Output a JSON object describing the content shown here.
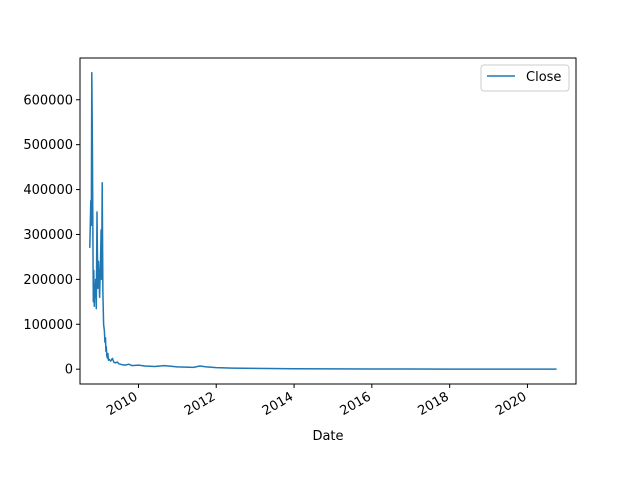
{
  "chart_data": {
    "type": "line",
    "xlabel": "Date",
    "ylabel": "",
    "x_ticks": [
      "2010",
      "2012",
      "2014",
      "2016",
      "2018",
      "2020"
    ],
    "y_ticks": [
      "0",
      "100000",
      "200000",
      "300000",
      "400000",
      "500000",
      "600000"
    ],
    "xlim": [
      "2008-07-01",
      "2021-04-01"
    ],
    "ylim": [
      -33000,
      693000
    ],
    "grid": false,
    "legend_position": "top-right",
    "series": [
      {
        "name": "Close",
        "color": "#1f77b4",
        "x": [
          "2008-10-01",
          "2008-10-10",
          "2008-10-15",
          "2008-10-20",
          "2008-10-25",
          "2008-10-30",
          "2008-11-03",
          "2008-11-08",
          "2008-11-12",
          "2008-11-16",
          "2008-11-20",
          "2008-11-25",
          "2008-12-01",
          "2008-12-08",
          "2008-12-15",
          "2008-12-22",
          "2009-01-01",
          "2009-01-10",
          "2009-01-15",
          "2009-01-20",
          "2009-01-25",
          "2009-02-01",
          "2009-02-08",
          "2009-02-15",
          "2009-02-20",
          "2009-02-25",
          "2009-03-01",
          "2009-03-05",
          "2009-03-10",
          "2009-03-15",
          "2009-03-20",
          "2009-03-25",
          "2009-04-01",
          "2009-04-15",
          "2009-05-01",
          "2009-05-15",
          "2009-06-01",
          "2009-06-15",
          "2009-07-01",
          "2009-08-01",
          "2009-09-01",
          "2009-10-01",
          "2009-11-01",
          "2010-01-01",
          "2010-03-01",
          "2010-06-01",
          "2010-09-01",
          "2011-01-01",
          "2011-06-01",
          "2011-08-01",
          "2011-10-01",
          "2012-01-01",
          "2012-06-01",
          "2013-01-01",
          "2014-01-01",
          "2015-01-01",
          "2016-01-01",
          "2017-01-01",
          "2018-01-01",
          "2019-01-01",
          "2020-01-01",
          "2020-10-01"
        ],
        "values": [
          270000,
          375000,
          320000,
          660000,
          500000,
          300000,
          150000,
          220000,
          140000,
          190000,
          160000,
          200000,
          135000,
          350000,
          180000,
          240000,
          160000,
          250000,
          310000,
          200000,
          415000,
          170000,
          100000,
          85000,
          60000,
          70000,
          40000,
          50000,
          30000,
          25000,
          35000,
          20000,
          22000,
          18000,
          24000,
          15000,
          14000,
          16000,
          12000,
          10000,
          9000,
          11000,
          8000,
          9000,
          7000,
          6000,
          8000,
          5000,
          4000,
          7000,
          5000,
          3500,
          2500,
          1800,
          1000,
          600,
          400,
          300,
          200,
          150,
          100,
          100
        ]
      }
    ]
  }
}
